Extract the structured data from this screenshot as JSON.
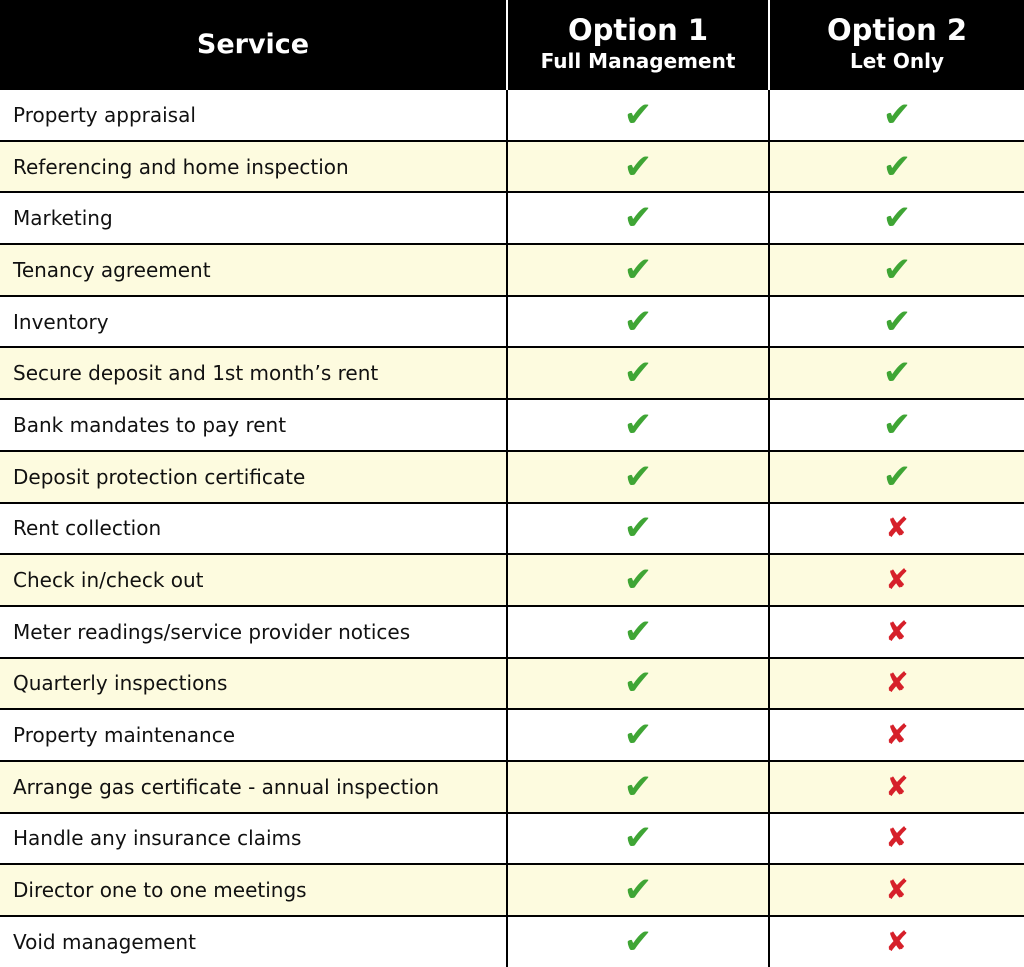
{
  "header": {
    "service": "Service",
    "option1": {
      "title": "Option 1",
      "subtitle": "Full Management"
    },
    "option2": {
      "title": "Option 2",
      "subtitle": "Let Only"
    }
  },
  "colors": {
    "tick": "#3fa535",
    "cross": "#d6202a",
    "alt_row": "#fdfbdf",
    "header_bg": "#000000"
  },
  "icons": {
    "included": "check-icon",
    "not_included": "cross-icon"
  },
  "rows": [
    {
      "service": "Property appraisal",
      "option1": true,
      "option2": true
    },
    {
      "service": "Referencing and home inspection",
      "option1": true,
      "option2": true
    },
    {
      "service": "Marketing",
      "option1": true,
      "option2": true
    },
    {
      "service": "Tenancy agreement",
      "option1": true,
      "option2": true
    },
    {
      "service": "Inventory",
      "option1": true,
      "option2": true
    },
    {
      "service": "Secure deposit and 1st month’s rent",
      "option1": true,
      "option2": true
    },
    {
      "service": "Bank mandates to pay rent",
      "option1": true,
      "option2": true
    },
    {
      "service": "Deposit protection certificate",
      "option1": true,
      "option2": true
    },
    {
      "service": "Rent collection",
      "option1": true,
      "option2": false
    },
    {
      "service": "Check in/check out",
      "option1": true,
      "option2": false
    },
    {
      "service": "Meter readings/service provider notices",
      "option1": true,
      "option2": false
    },
    {
      "service": "Quarterly inspections",
      "option1": true,
      "option2": false
    },
    {
      "service": "Property maintenance",
      "option1": true,
      "option2": false
    },
    {
      "service": "Arrange gas certificate - annual inspection",
      "option1": true,
      "option2": false
    },
    {
      "service": "Handle any insurance claims",
      "option1": true,
      "option2": false
    },
    {
      "service": "Director one to one meetings",
      "option1": true,
      "option2": false
    },
    {
      "service": "Void management",
      "option1": true,
      "option2": false
    }
  ]
}
